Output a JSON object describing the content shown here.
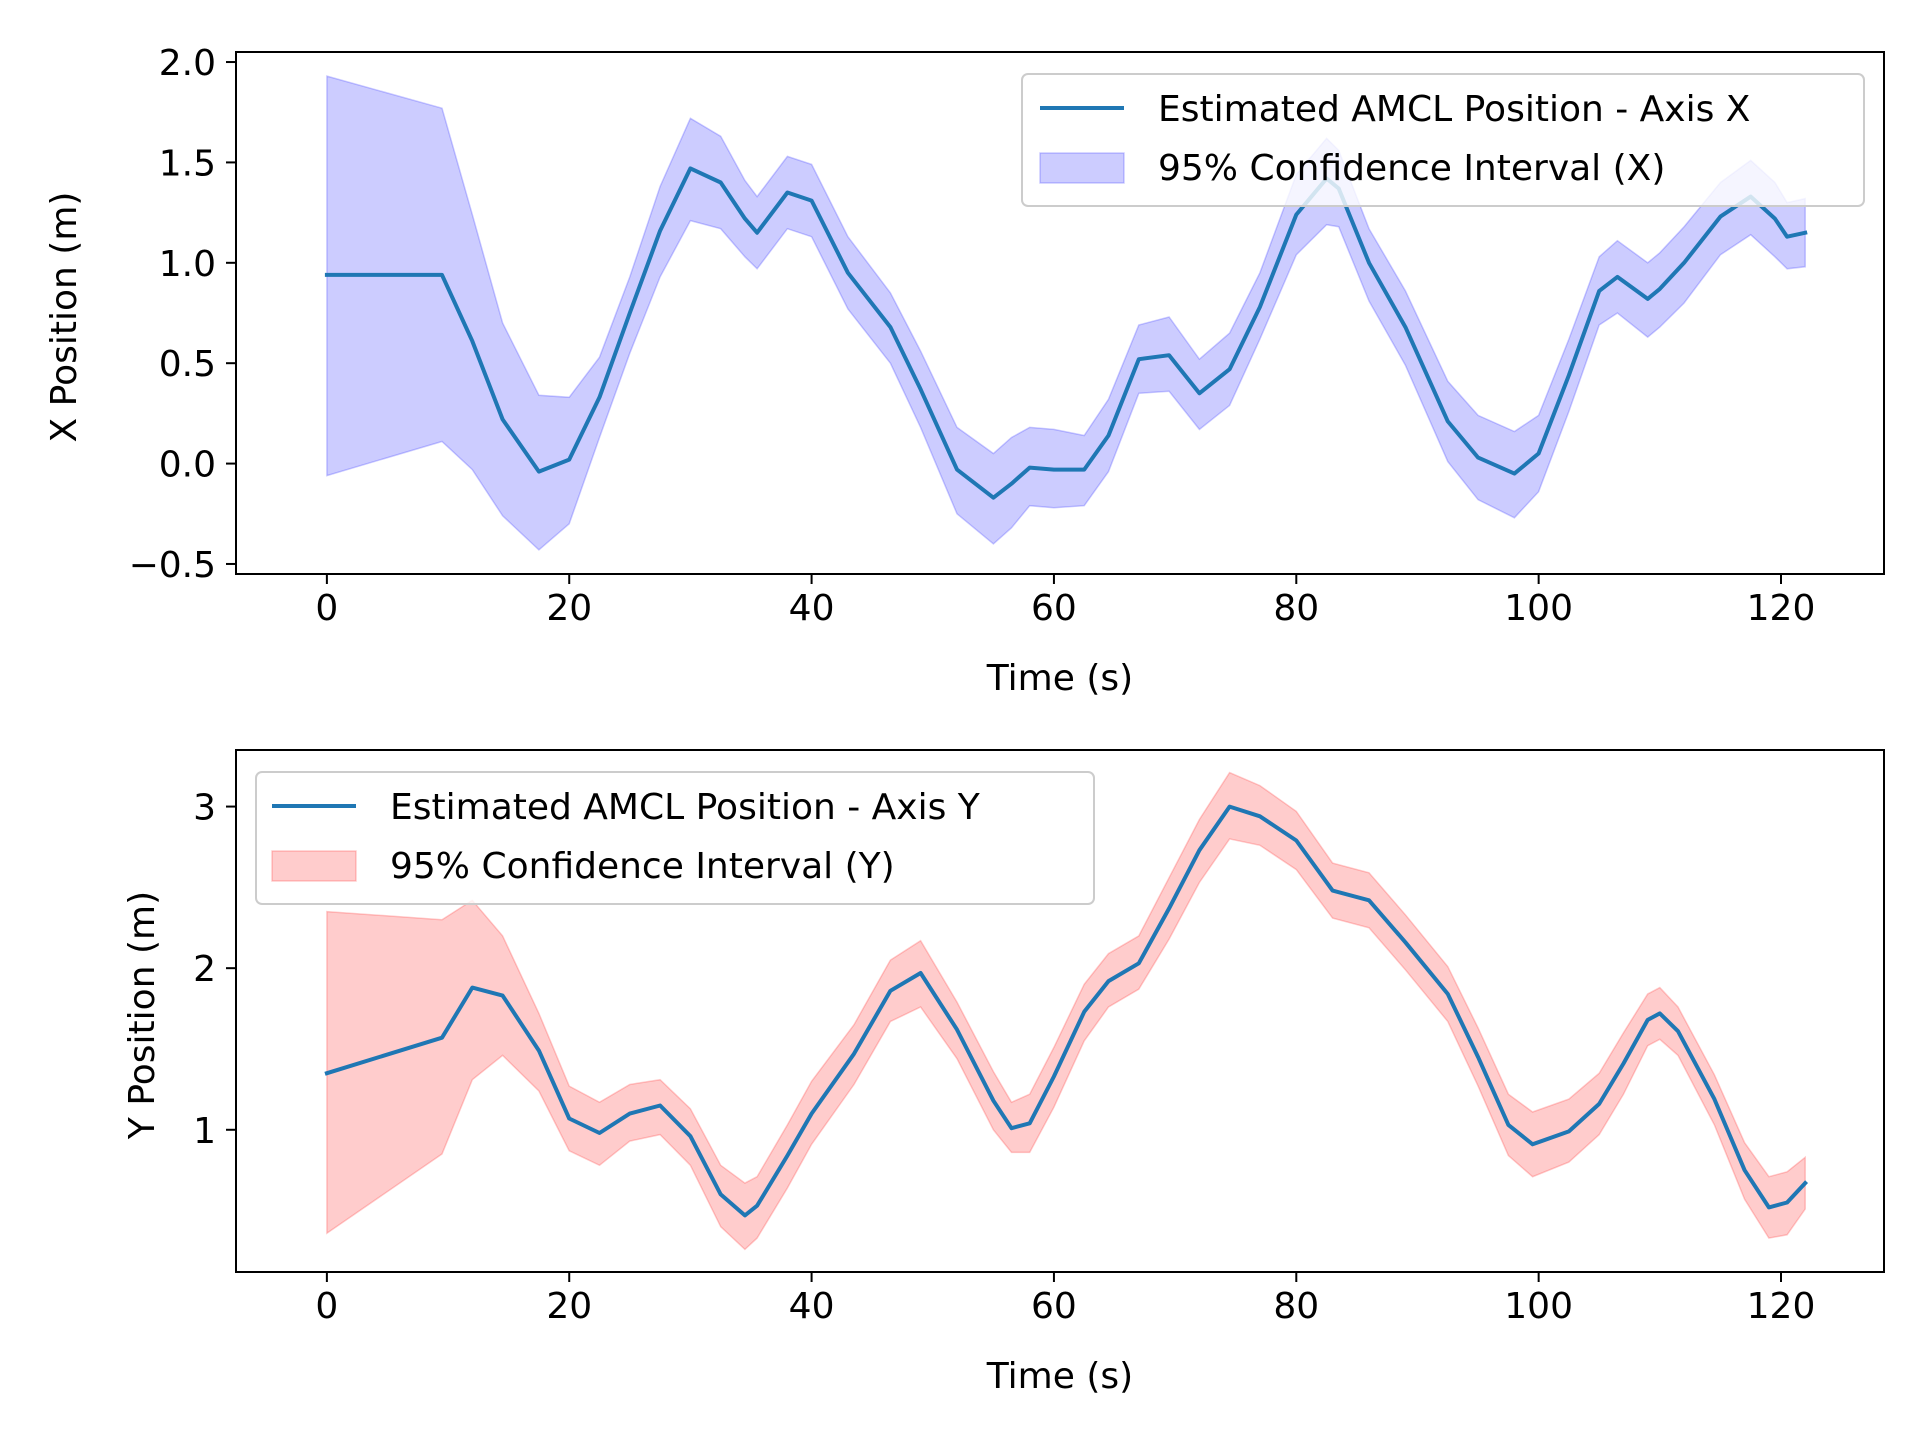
{
  "chart_data": [
    {
      "type": "line",
      "xlabel": "Time (s)",
      "ylabel": "X Position (m)",
      "xlim": [
        -7.5,
        128.5
      ],
      "ylim": [
        -0.55,
        2.05
      ],
      "xticks": [
        0,
        20,
        40,
        60,
        80,
        100,
        120
      ],
      "xtick_labels": [
        "0",
        "20",
        "40",
        "60",
        "80",
        "100",
        "120"
      ],
      "yticks": [
        -0.5,
        0.0,
        0.5,
        1.0,
        1.5,
        2.0
      ],
      "ytick_labels": [
        "−0.5",
        "0.0",
        "0.5",
        "1.0",
        "1.5",
        "2.0"
      ],
      "grid": false,
      "legend_position": "upper right",
      "series": [
        {
          "name": "Estimated AMCL Position - Axis X",
          "kind": "line",
          "color": "#1f77b4",
          "x": [
            0,
            9.5,
            12,
            14.5,
            17.5,
            20,
            22.5,
            25,
            27.5,
            30,
            32.5,
            34.5,
            35.5,
            38,
            40,
            43,
            46.5,
            49,
            52,
            55,
            56.5,
            58,
            60,
            62.5,
            64.5,
            67,
            69.5,
            72,
            74.5,
            77,
            80,
            82.5,
            83.5,
            86,
            89,
            92.5,
            95,
            98,
            100,
            102.5,
            105,
            106.5,
            109,
            110,
            112,
            115,
            117.5,
            119.5,
            120.5,
            122
          ],
          "y": [
            0.94,
            0.94,
            0.61,
            0.22,
            -0.04,
            0.02,
            0.33,
            0.75,
            1.16,
            1.47,
            1.4,
            1.22,
            1.15,
            1.35,
            1.31,
            0.95,
            0.68,
            0.37,
            -0.03,
            -0.17,
            -0.1,
            -0.02,
            -0.03,
            -0.03,
            0.14,
            0.52,
            0.54,
            0.35,
            0.47,
            0.78,
            1.24,
            1.42,
            1.37,
            1.0,
            0.68,
            0.21,
            0.03,
            -0.05,
            0.05,
            0.44,
            0.86,
            0.93,
            0.82,
            0.87,
            1.0,
            1.23,
            1.33,
            1.22,
            1.13,
            1.15
          ]
        },
        {
          "name": "95% Confidence Interval (X)",
          "kind": "band",
          "color": "#0000ff",
          "alpha": 0.2,
          "x": [
            0,
            9.5,
            12,
            14.5,
            17.5,
            20,
            22.5,
            25,
            27.5,
            30,
            32.5,
            34.5,
            35.5,
            38,
            40,
            43,
            46.5,
            49,
            52,
            55,
            56.5,
            58,
            60,
            62.5,
            64.5,
            67,
            69.5,
            72,
            74.5,
            77,
            80,
            82.5,
            83.5,
            86,
            89,
            92.5,
            95,
            98,
            100,
            102.5,
            105,
            106.5,
            109,
            110,
            112,
            115,
            117.5,
            119.5,
            120.5,
            122
          ],
          "lower": [
            -0.06,
            0.11,
            -0.03,
            -0.26,
            -0.43,
            -0.3,
            0.13,
            0.55,
            0.93,
            1.21,
            1.17,
            1.03,
            0.97,
            1.17,
            1.13,
            0.77,
            0.5,
            0.18,
            -0.25,
            -0.4,
            -0.32,
            -0.21,
            -0.22,
            -0.21,
            -0.04,
            0.35,
            0.36,
            0.17,
            0.29,
            0.62,
            1.04,
            1.19,
            1.18,
            0.81,
            0.49,
            0.01,
            -0.18,
            -0.27,
            -0.14,
            0.26,
            0.69,
            0.75,
            0.63,
            0.68,
            0.8,
            1.04,
            1.14,
            1.03,
            0.97,
            0.98
          ],
          "upper": [
            1.93,
            1.77,
            1.24,
            0.7,
            0.34,
            0.33,
            0.53,
            0.93,
            1.38,
            1.72,
            1.63,
            1.41,
            1.33,
            1.53,
            1.49,
            1.13,
            0.85,
            0.56,
            0.18,
            0.05,
            0.13,
            0.18,
            0.17,
            0.14,
            0.32,
            0.69,
            0.73,
            0.52,
            0.65,
            0.95,
            1.44,
            1.62,
            1.56,
            1.17,
            0.86,
            0.41,
            0.24,
            0.16,
            0.24,
            0.62,
            1.03,
            1.11,
            1.0,
            1.05,
            1.18,
            1.4,
            1.51,
            1.4,
            1.3,
            1.32
          ]
        }
      ]
    },
    {
      "type": "line",
      "xlabel": "Time (s)",
      "ylabel": "Y Position (m)",
      "xlim": [
        -7.5,
        128.5
      ],
      "ylim": [
        0.12,
        3.35
      ],
      "xticks": [
        0,
        20,
        40,
        60,
        80,
        100,
        120
      ],
      "xtick_labels": [
        "0",
        "20",
        "40",
        "60",
        "80",
        "100",
        "120"
      ],
      "yticks": [
        1,
        2,
        3
      ],
      "ytick_labels": [
        "1",
        "2",
        "3"
      ],
      "grid": false,
      "legend_position": "upper left",
      "series": [
        {
          "name": "Estimated AMCL Position - Axis Y",
          "kind": "line",
          "color": "#1f77b4",
          "x": [
            0,
            9.5,
            12,
            14.5,
            17.5,
            20,
            22.5,
            25,
            27.5,
            30,
            32.5,
            34.5,
            35.5,
            38,
            40,
            43.5,
            46.5,
            49,
            52,
            55,
            56.5,
            58,
            60,
            62.5,
            64.5,
            67,
            69.5,
            72,
            74.5,
            77,
            80,
            83,
            86,
            89,
            92.5,
            95,
            97.5,
            99.5,
            102.5,
            105,
            107,
            109,
            110,
            111.5,
            114.5,
            117,
            119,
            120.5,
            122
          ],
          "y": [
            1.35,
            1.57,
            1.88,
            1.83,
            1.49,
            1.07,
            0.98,
            1.1,
            1.15,
            0.96,
            0.6,
            0.47,
            0.53,
            0.84,
            1.1,
            1.47,
            1.86,
            1.97,
            1.62,
            1.18,
            1.01,
            1.04,
            1.33,
            1.73,
            1.92,
            2.03,
            2.37,
            2.73,
            3.0,
            2.94,
            2.79,
            2.48,
            2.42,
            2.16,
            1.84,
            1.45,
            1.03,
            0.91,
            0.99,
            1.16,
            1.41,
            1.68,
            1.72,
            1.61,
            1.19,
            0.75,
            0.52,
            0.55,
            0.67
          ]
        },
        {
          "name": "95% Confidence Interval (Y)",
          "kind": "band",
          "color": "#ff0000",
          "alpha": 0.2,
          "x": [
            0,
            9.5,
            12,
            14.5,
            17.5,
            20,
            22.5,
            25,
            27.5,
            30,
            32.5,
            34.5,
            35.5,
            38,
            40,
            43.5,
            46.5,
            49,
            52,
            55,
            56.5,
            58,
            60,
            62.5,
            64.5,
            67,
            69.5,
            72,
            74.5,
            77,
            80,
            83,
            86,
            89,
            92.5,
            95,
            97.5,
            99.5,
            102.5,
            105,
            107,
            109,
            110,
            111.5,
            114.5,
            117,
            119,
            120.5,
            122
          ],
          "lower": [
            0.36,
            0.85,
            1.31,
            1.46,
            1.24,
            0.87,
            0.78,
            0.93,
            0.97,
            0.78,
            0.4,
            0.26,
            0.33,
            0.64,
            0.91,
            1.28,
            1.67,
            1.76,
            1.44,
            1.0,
            0.86,
            0.86,
            1.14,
            1.55,
            1.76,
            1.87,
            2.18,
            2.53,
            2.8,
            2.76,
            2.61,
            2.31,
            2.25,
            1.99,
            1.67,
            1.27,
            0.84,
            0.71,
            0.8,
            0.97,
            1.22,
            1.52,
            1.56,
            1.46,
            1.03,
            0.57,
            0.33,
            0.35,
            0.51
          ],
          "upper": [
            2.35,
            2.3,
            2.42,
            2.2,
            1.72,
            1.27,
            1.17,
            1.28,
            1.31,
            1.13,
            0.78,
            0.67,
            0.71,
            1.03,
            1.3,
            1.65,
            2.05,
            2.17,
            1.79,
            1.36,
            1.17,
            1.22,
            1.51,
            1.9,
            2.09,
            2.2,
            2.56,
            2.92,
            3.21,
            3.13,
            2.97,
            2.65,
            2.59,
            2.33,
            2.01,
            1.63,
            1.22,
            1.11,
            1.19,
            1.35,
            1.6,
            1.84,
            1.88,
            1.76,
            1.34,
            0.92,
            0.71,
            0.74,
            0.83
          ]
        }
      ]
    }
  ]
}
